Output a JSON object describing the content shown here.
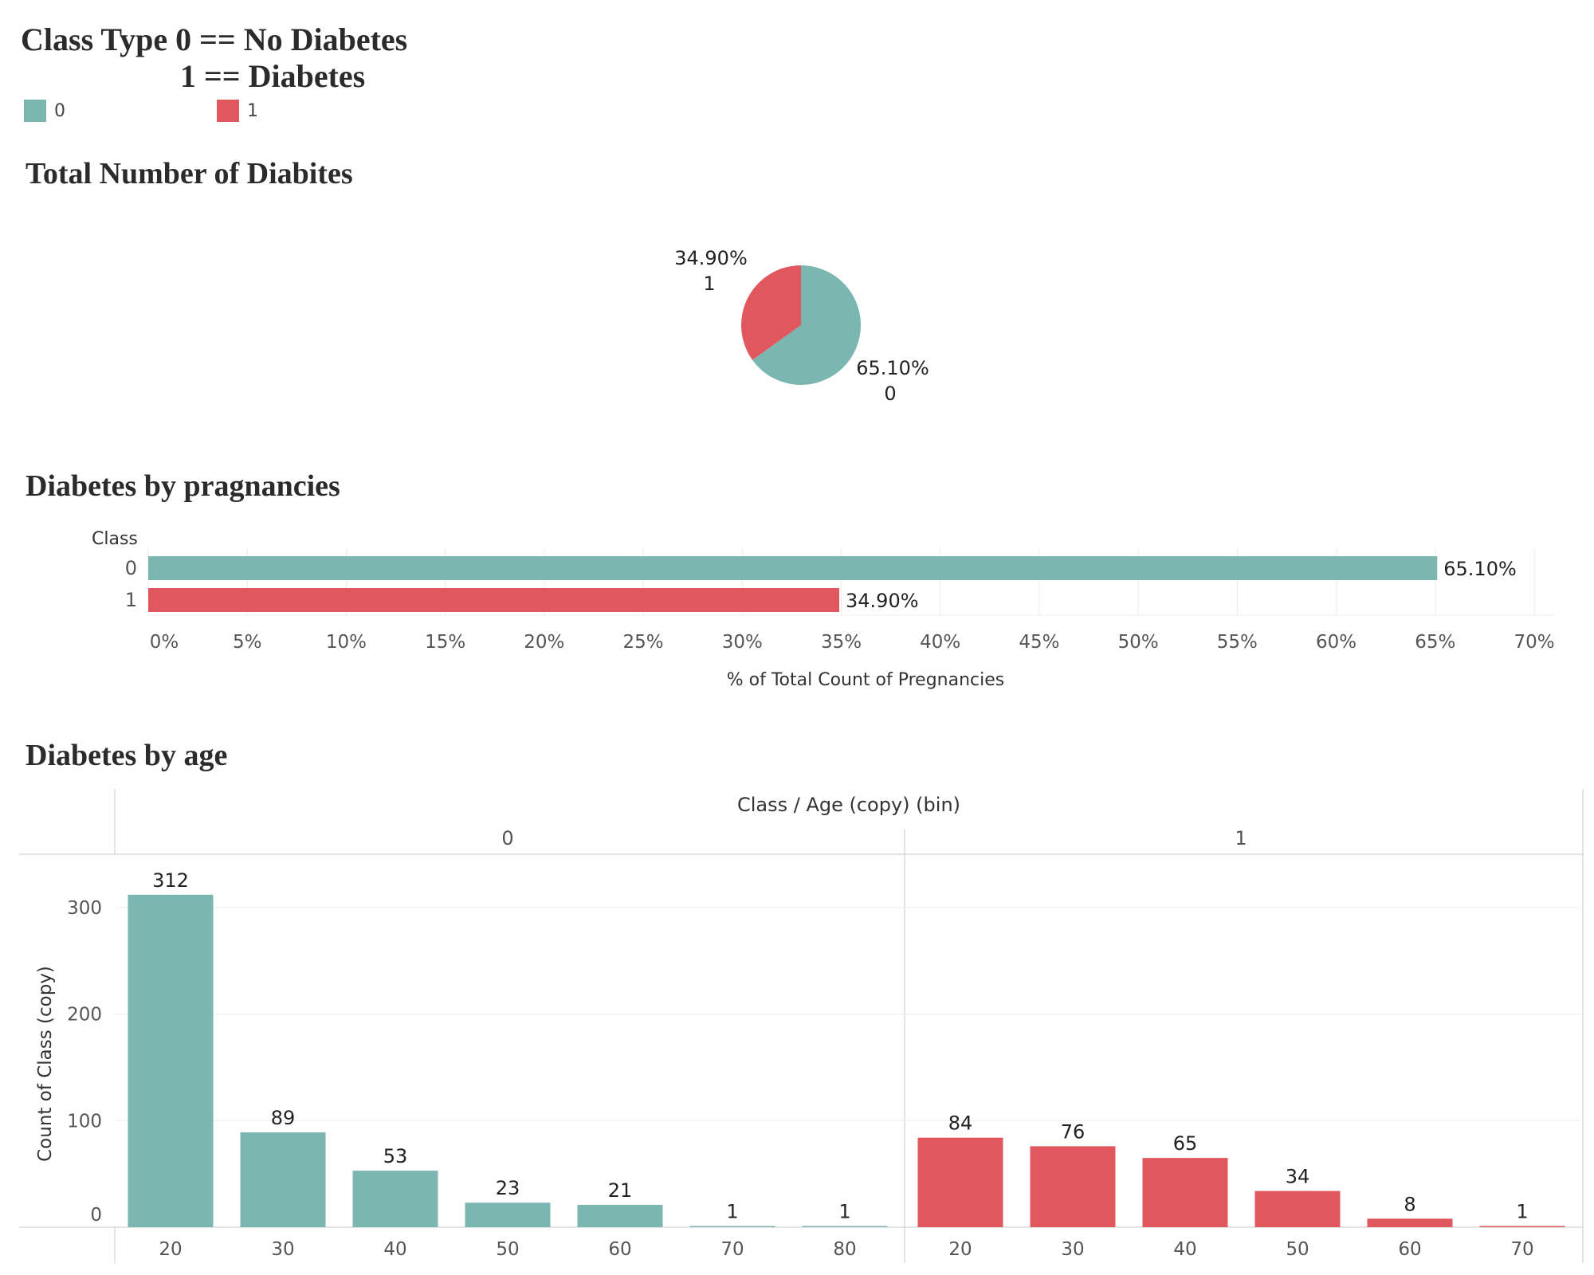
{
  "header": {
    "title_line1": "Class Type 0 == No Diabetes",
    "title_line2": "1 == Diabetes",
    "legend": [
      {
        "label": "0",
        "color": "#7bb6b0"
      },
      {
        "label": "1",
        "color": "#e0585e"
      }
    ]
  },
  "colors": {
    "class0": "#7bb6b0",
    "class1": "#e0585e",
    "grid": "#ececec",
    "axis": "#c8c8c8",
    "text": "#555555"
  },
  "chart_data": [
    {
      "type": "pie",
      "title": "Total Number of Diabites",
      "slices": [
        {
          "class": "0",
          "percent": 65.1,
          "label_pct": "65.10%",
          "label_class": "0"
        },
        {
          "class": "1",
          "percent": 34.9,
          "label_pct": "34.90%",
          "label_class": "1"
        }
      ]
    },
    {
      "type": "bar",
      "orientation": "horizontal",
      "title": "Diabetes by pragnancies",
      "row_header": "Class",
      "categories": [
        "0",
        "1"
      ],
      "values": [
        65.1,
        34.9
      ],
      "value_labels": [
        "65.10%",
        "34.90%"
      ],
      "xlabel": "% of Total Count of Pregnancies",
      "xlim": [
        0,
        70
      ],
      "xticks": [
        "0%",
        "5%",
        "10%",
        "15%",
        "20%",
        "25%",
        "30%",
        "35%",
        "40%",
        "45%",
        "50%",
        "55%",
        "60%",
        "65%",
        "70%"
      ]
    },
    {
      "type": "bar",
      "title": "Diabetes by age",
      "column_header": "Class / Age (copy) (bin)",
      "ylabel": "Count of Class (copy)",
      "ylim": [
        0,
        350
      ],
      "yticks": [
        "0",
        "100",
        "200",
        "300"
      ],
      "panels": [
        {
          "class": "0",
          "categories": [
            "20",
            "30",
            "40",
            "50",
            "60",
            "70",
            "80"
          ],
          "values": [
            312,
            89,
            53,
            23,
            21,
            1,
            1
          ]
        },
        {
          "class": "1",
          "categories": [
            "20",
            "30",
            "40",
            "50",
            "60",
            "70"
          ],
          "values": [
            84,
            76,
            65,
            34,
            8,
            1
          ]
        }
      ]
    }
  ]
}
